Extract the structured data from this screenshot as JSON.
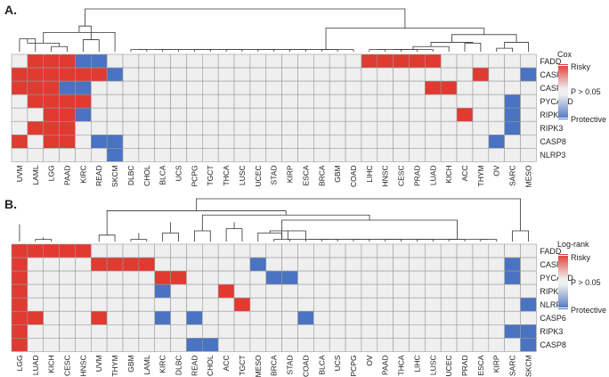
{
  "colors": {
    "risky": "#e03a31",
    "protective": "#4a73c1",
    "neutral": "#efefef",
    "grid": "#9a9a9a",
    "tree": "#333333"
  },
  "chart_data": [
    {
      "type": "heatmap",
      "panel_label": "A.",
      "legend": {
        "title": "Cox",
        "labels": [
          "Risky",
          "P > 0.05",
          "Protective"
        ]
      },
      "columns": [
        "UVM",
        "LAML",
        "LGG",
        "PAAD",
        "KIRC",
        "READ",
        "SKCM",
        "DLBC",
        "CHOL",
        "BLCA",
        "UCS",
        "PCPG",
        "TGCT",
        "THCA",
        "LUSC",
        "UCEC",
        "STAD",
        "KIRP",
        "ESCA",
        "BRCA",
        "GBM",
        "COAD",
        "LIHC",
        "HNSC",
        "CESC",
        "PRAD",
        "LUAD",
        "KICH",
        "ACC",
        "THYM",
        "OV",
        "SARC",
        "MESO"
      ],
      "rows": [
        "FADD",
        "CASP1",
        "CASP6",
        "PYCARD",
        "RIPK1",
        "RIPK3",
        "CASP8",
        "NLRP3"
      ],
      "values": [
        [
          0,
          1,
          1,
          1,
          -1,
          -1,
          0,
          0,
          0,
          0,
          0,
          0,
          0,
          0,
          0,
          0,
          0,
          0,
          0,
          0,
          0,
          0,
          1,
          1,
          1,
          1,
          1,
          0,
          0,
          0,
          0,
          0,
          0
        ],
        [
          1,
          1,
          1,
          1,
          1,
          1,
          -1,
          0,
          0,
          0,
          0,
          0,
          0,
          0,
          0,
          0,
          0,
          0,
          0,
          0,
          0,
          0,
          0,
          0,
          0,
          0,
          0,
          0,
          0,
          1,
          0,
          0,
          -1
        ],
        [
          1,
          1,
          1,
          -1,
          -1,
          0,
          0,
          0,
          0,
          0,
          0,
          0,
          0,
          0,
          0,
          0,
          0,
          0,
          0,
          0,
          0,
          0,
          0,
          0,
          0,
          0,
          1,
          1,
          0,
          0,
          0,
          0,
          0
        ],
        [
          0,
          1,
          1,
          1,
          1,
          0,
          0,
          0,
          0,
          0,
          0,
          0,
          0,
          0,
          0,
          0,
          0,
          0,
          0,
          0,
          0,
          0,
          0,
          0,
          0,
          0,
          0,
          0,
          0,
          0,
          0,
          -1,
          0
        ],
        [
          0,
          0,
          1,
          1,
          -1,
          0,
          0,
          0,
          0,
          0,
          0,
          0,
          0,
          0,
          0,
          0,
          0,
          0,
          0,
          0,
          0,
          0,
          0,
          0,
          0,
          0,
          0,
          0,
          1,
          0,
          0,
          -1,
          0
        ],
        [
          0,
          1,
          1,
          1,
          0,
          0,
          0,
          0,
          0,
          0,
          0,
          0,
          0,
          0,
          0,
          0,
          0,
          0,
          0,
          0,
          0,
          0,
          0,
          0,
          0,
          0,
          0,
          0,
          0,
          0,
          0,
          -1,
          0
        ],
        [
          1,
          0,
          1,
          1,
          0,
          -1,
          -1,
          0,
          0,
          0,
          0,
          0,
          0,
          0,
          0,
          0,
          0,
          0,
          0,
          0,
          0,
          0,
          0,
          0,
          0,
          0,
          0,
          0,
          0,
          0,
          -1,
          0,
          0
        ],
        [
          0,
          0,
          0,
          0,
          0,
          0,
          -1,
          0,
          0,
          0,
          0,
          0,
          0,
          0,
          0,
          0,
          0,
          0,
          0,
          0,
          0,
          0,
          0,
          0,
          0,
          0,
          0,
          0,
          0,
          0,
          0,
          0,
          0
        ]
      ]
    },
    {
      "type": "heatmap",
      "panel_label": "B.",
      "legend": {
        "title": "Log-rank",
        "labels": [
          "Risky",
          "P > 0.05",
          "Protective"
        ]
      },
      "columns": [
        "LGG",
        "LUAD",
        "KICH",
        "CESC",
        "HNSC",
        "UVM",
        "THYM",
        "GBM",
        "LAML",
        "KIRC",
        "DLBC",
        "READ",
        "CHOL",
        "ACC",
        "TGCT",
        "MESO",
        "BRCA",
        "STAD",
        "COAD",
        "BLCA",
        "UCS",
        "PCPG",
        "OV",
        "PAAD",
        "THCA",
        "LIHC",
        "LUSC",
        "UCEC",
        "PRAD",
        "ESCA",
        "KIRP",
        "SARC",
        "SKCM"
      ],
      "rows": [
        "FADD",
        "CASP1",
        "PYCARD",
        "RIPK1",
        "NLRP3",
        "CASP6",
        "RIPK3",
        "CASP8"
      ],
      "values": [
        [
          1,
          1,
          1,
          1,
          1,
          0,
          0,
          0,
          0,
          0,
          0,
          0,
          0,
          0,
          0,
          0,
          0,
          0,
          0,
          0,
          0,
          0,
          0,
          0,
          0,
          0,
          0,
          0,
          0,
          0,
          0,
          0,
          0
        ],
        [
          1,
          0,
          0,
          0,
          0,
          1,
          1,
          1,
          1,
          0,
          0,
          0,
          0,
          0,
          0,
          -1,
          0,
          0,
          0,
          0,
          0,
          0,
          0,
          0,
          0,
          0,
          0,
          0,
          0,
          0,
          0,
          -1,
          0
        ],
        [
          1,
          0,
          0,
          0,
          0,
          0,
          0,
          0,
          0,
          1,
          1,
          0,
          0,
          0,
          0,
          0,
          -1,
          -1,
          0,
          0,
          0,
          0,
          0,
          0,
          0,
          0,
          0,
          0,
          0,
          0,
          0,
          -1,
          0
        ],
        [
          1,
          0,
          0,
          0,
          0,
          0,
          0,
          0,
          0,
          -1,
          0,
          0,
          0,
          1,
          0,
          0,
          0,
          0,
          0,
          0,
          0,
          0,
          0,
          0,
          0,
          0,
          0,
          0,
          0,
          0,
          0,
          0,
          0
        ],
        [
          1,
          0,
          0,
          0,
          0,
          0,
          0,
          0,
          0,
          0,
          0,
          0,
          0,
          0,
          1,
          0,
          0,
          0,
          0,
          0,
          0,
          0,
          0,
          0,
          0,
          0,
          0,
          0,
          0,
          0,
          0,
          0,
          -1
        ],
        [
          1,
          1,
          0,
          0,
          0,
          1,
          0,
          0,
          0,
          -1,
          0,
          -1,
          0,
          0,
          0,
          0,
          0,
          0,
          -1,
          0,
          0,
          0,
          0,
          0,
          0,
          0,
          0,
          0,
          0,
          0,
          0,
          0,
          0
        ],
        [
          1,
          0,
          0,
          0,
          0,
          0,
          0,
          0,
          0,
          0,
          0,
          0,
          0,
          0,
          0,
          0,
          0,
          0,
          0,
          0,
          0,
          0,
          0,
          0,
          0,
          0,
          0,
          0,
          0,
          0,
          0,
          -1,
          -1
        ],
        [
          1,
          0,
          0,
          0,
          0,
          0,
          0,
          0,
          0,
          0,
          0,
          -1,
          -1,
          0,
          0,
          0,
          0,
          0,
          0,
          0,
          0,
          0,
          0,
          0,
          0,
          0,
          0,
          0,
          0,
          0,
          0,
          0,
          -1
        ]
      ]
    }
  ]
}
